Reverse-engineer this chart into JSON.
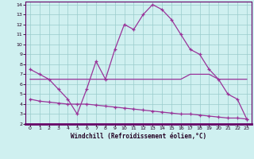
{
  "xlabel": "Windchill (Refroidissement éolien,°C)",
  "xlim": [
    0,
    23
  ],
  "ylim": [
    2,
    14.3
  ],
  "yticks": [
    2,
    3,
    4,
    5,
    6,
    7,
    8,
    9,
    10,
    11,
    12,
    13,
    14
  ],
  "xticks": [
    0,
    1,
    2,
    3,
    4,
    5,
    6,
    7,
    8,
    9,
    10,
    11,
    12,
    13,
    14,
    15,
    16,
    17,
    18,
    19,
    20,
    21,
    22,
    23
  ],
  "bg_color": "#cff0f0",
  "line_color": "#993399",
  "grid_color": "#99cccc",
  "line1_x": [
    0,
    1,
    2,
    3,
    4,
    5,
    6,
    7,
    8,
    9,
    10,
    11,
    12,
    13,
    14,
    15,
    16,
    17,
    18,
    19,
    20,
    21,
    22,
    23
  ],
  "line1_y": [
    6.5,
    6.5,
    6.5,
    6.5,
    6.5,
    6.5,
    6.5,
    6.5,
    6.5,
    6.5,
    6.5,
    6.5,
    6.5,
    6.5,
    6.5,
    6.5,
    6.5,
    7.0,
    7.0,
    7.0,
    6.5,
    6.5,
    6.5,
    6.5
  ],
  "line2_x": [
    0,
    1,
    2,
    3,
    4,
    5,
    6,
    7,
    8,
    9,
    10,
    11,
    12,
    13,
    14,
    15,
    16,
    17,
    18,
    19,
    20,
    21,
    22,
    23
  ],
  "line2_y": [
    7.5,
    7.0,
    6.5,
    5.5,
    4.5,
    3.0,
    5.5,
    8.3,
    6.5,
    9.5,
    12.0,
    11.5,
    13.0,
    14.0,
    13.5,
    12.5,
    11.0,
    9.5,
    9.0,
    7.5,
    6.5,
    5.0,
    4.5,
    2.5
  ],
  "line3_x": [
    0,
    1,
    2,
    3,
    4,
    5,
    6,
    7,
    8,
    9,
    10,
    11,
    12,
    13,
    14,
    15,
    16,
    17,
    18,
    19,
    20,
    21,
    22,
    23
  ],
  "line3_y": [
    4.5,
    4.3,
    4.2,
    4.1,
    4.0,
    4.0,
    4.0,
    3.9,
    3.8,
    3.7,
    3.6,
    3.5,
    3.4,
    3.3,
    3.2,
    3.1,
    3.0,
    3.0,
    2.9,
    2.8,
    2.7,
    2.6,
    2.6,
    2.5
  ]
}
